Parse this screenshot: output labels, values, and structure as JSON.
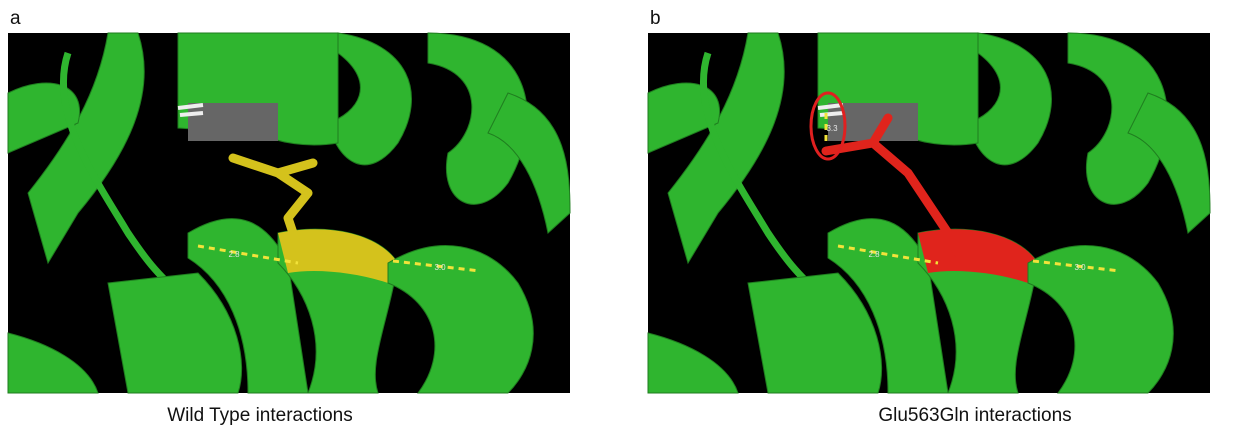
{
  "panels": [
    {
      "label": "a",
      "caption": "Wild Type interactions",
      "distances": [
        "2.8",
        "3.0"
      ]
    },
    {
      "label": "b",
      "caption": "Glu563Gln interactions",
      "distances": [
        "2.8",
        "3.0",
        "3.3"
      ]
    }
  ]
}
